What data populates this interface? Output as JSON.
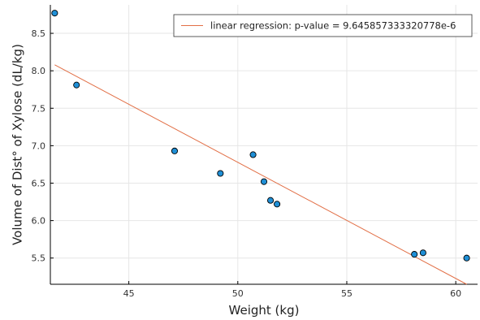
{
  "chart_data": {
    "type": "scatter",
    "xlabel": "Weight (kg)",
    "ylabel": "Volume of Dist° of Xylose (dL/kg)",
    "xlim": [
      41.4,
      61.0
    ],
    "ylim": [
      5.15,
      8.88
    ],
    "x_ticks": [
      45,
      50,
      55,
      60
    ],
    "x_tick_labels": [
      "45",
      "50",
      "55",
      "60"
    ],
    "y_ticks": [
      5.5,
      6.0,
      6.5,
      7.0,
      7.5,
      8.0,
      8.5
    ],
    "y_tick_labels": [
      "5.5",
      "6.0",
      "6.5",
      "7.0",
      "7.5",
      "8.0",
      "8.5"
    ],
    "grid": true,
    "legend_position": "top-right",
    "points": [
      {
        "x": 41.6,
        "y": 8.77
      },
      {
        "x": 42.6,
        "y": 7.81
      },
      {
        "x": 47.1,
        "y": 6.93
      },
      {
        "x": 49.2,
        "y": 6.63
      },
      {
        "x": 50.7,
        "y": 6.88
      },
      {
        "x": 51.2,
        "y": 6.52
      },
      {
        "x": 51.5,
        "y": 6.27
      },
      {
        "x": 51.8,
        "y": 6.22
      },
      {
        "x": 58.1,
        "y": 5.55
      },
      {
        "x": 58.5,
        "y": 5.57
      },
      {
        "x": 60.5,
        "y": 5.5
      }
    ],
    "regression_line": {
      "name": "linear regression: p-value = 9.645857333320778e-6",
      "x": [
        41.6,
        60.5
      ],
      "y": [
        8.08,
        5.15
      ]
    },
    "colors": {
      "points": "#1f8fd6",
      "line": "#e26f46"
    }
  }
}
